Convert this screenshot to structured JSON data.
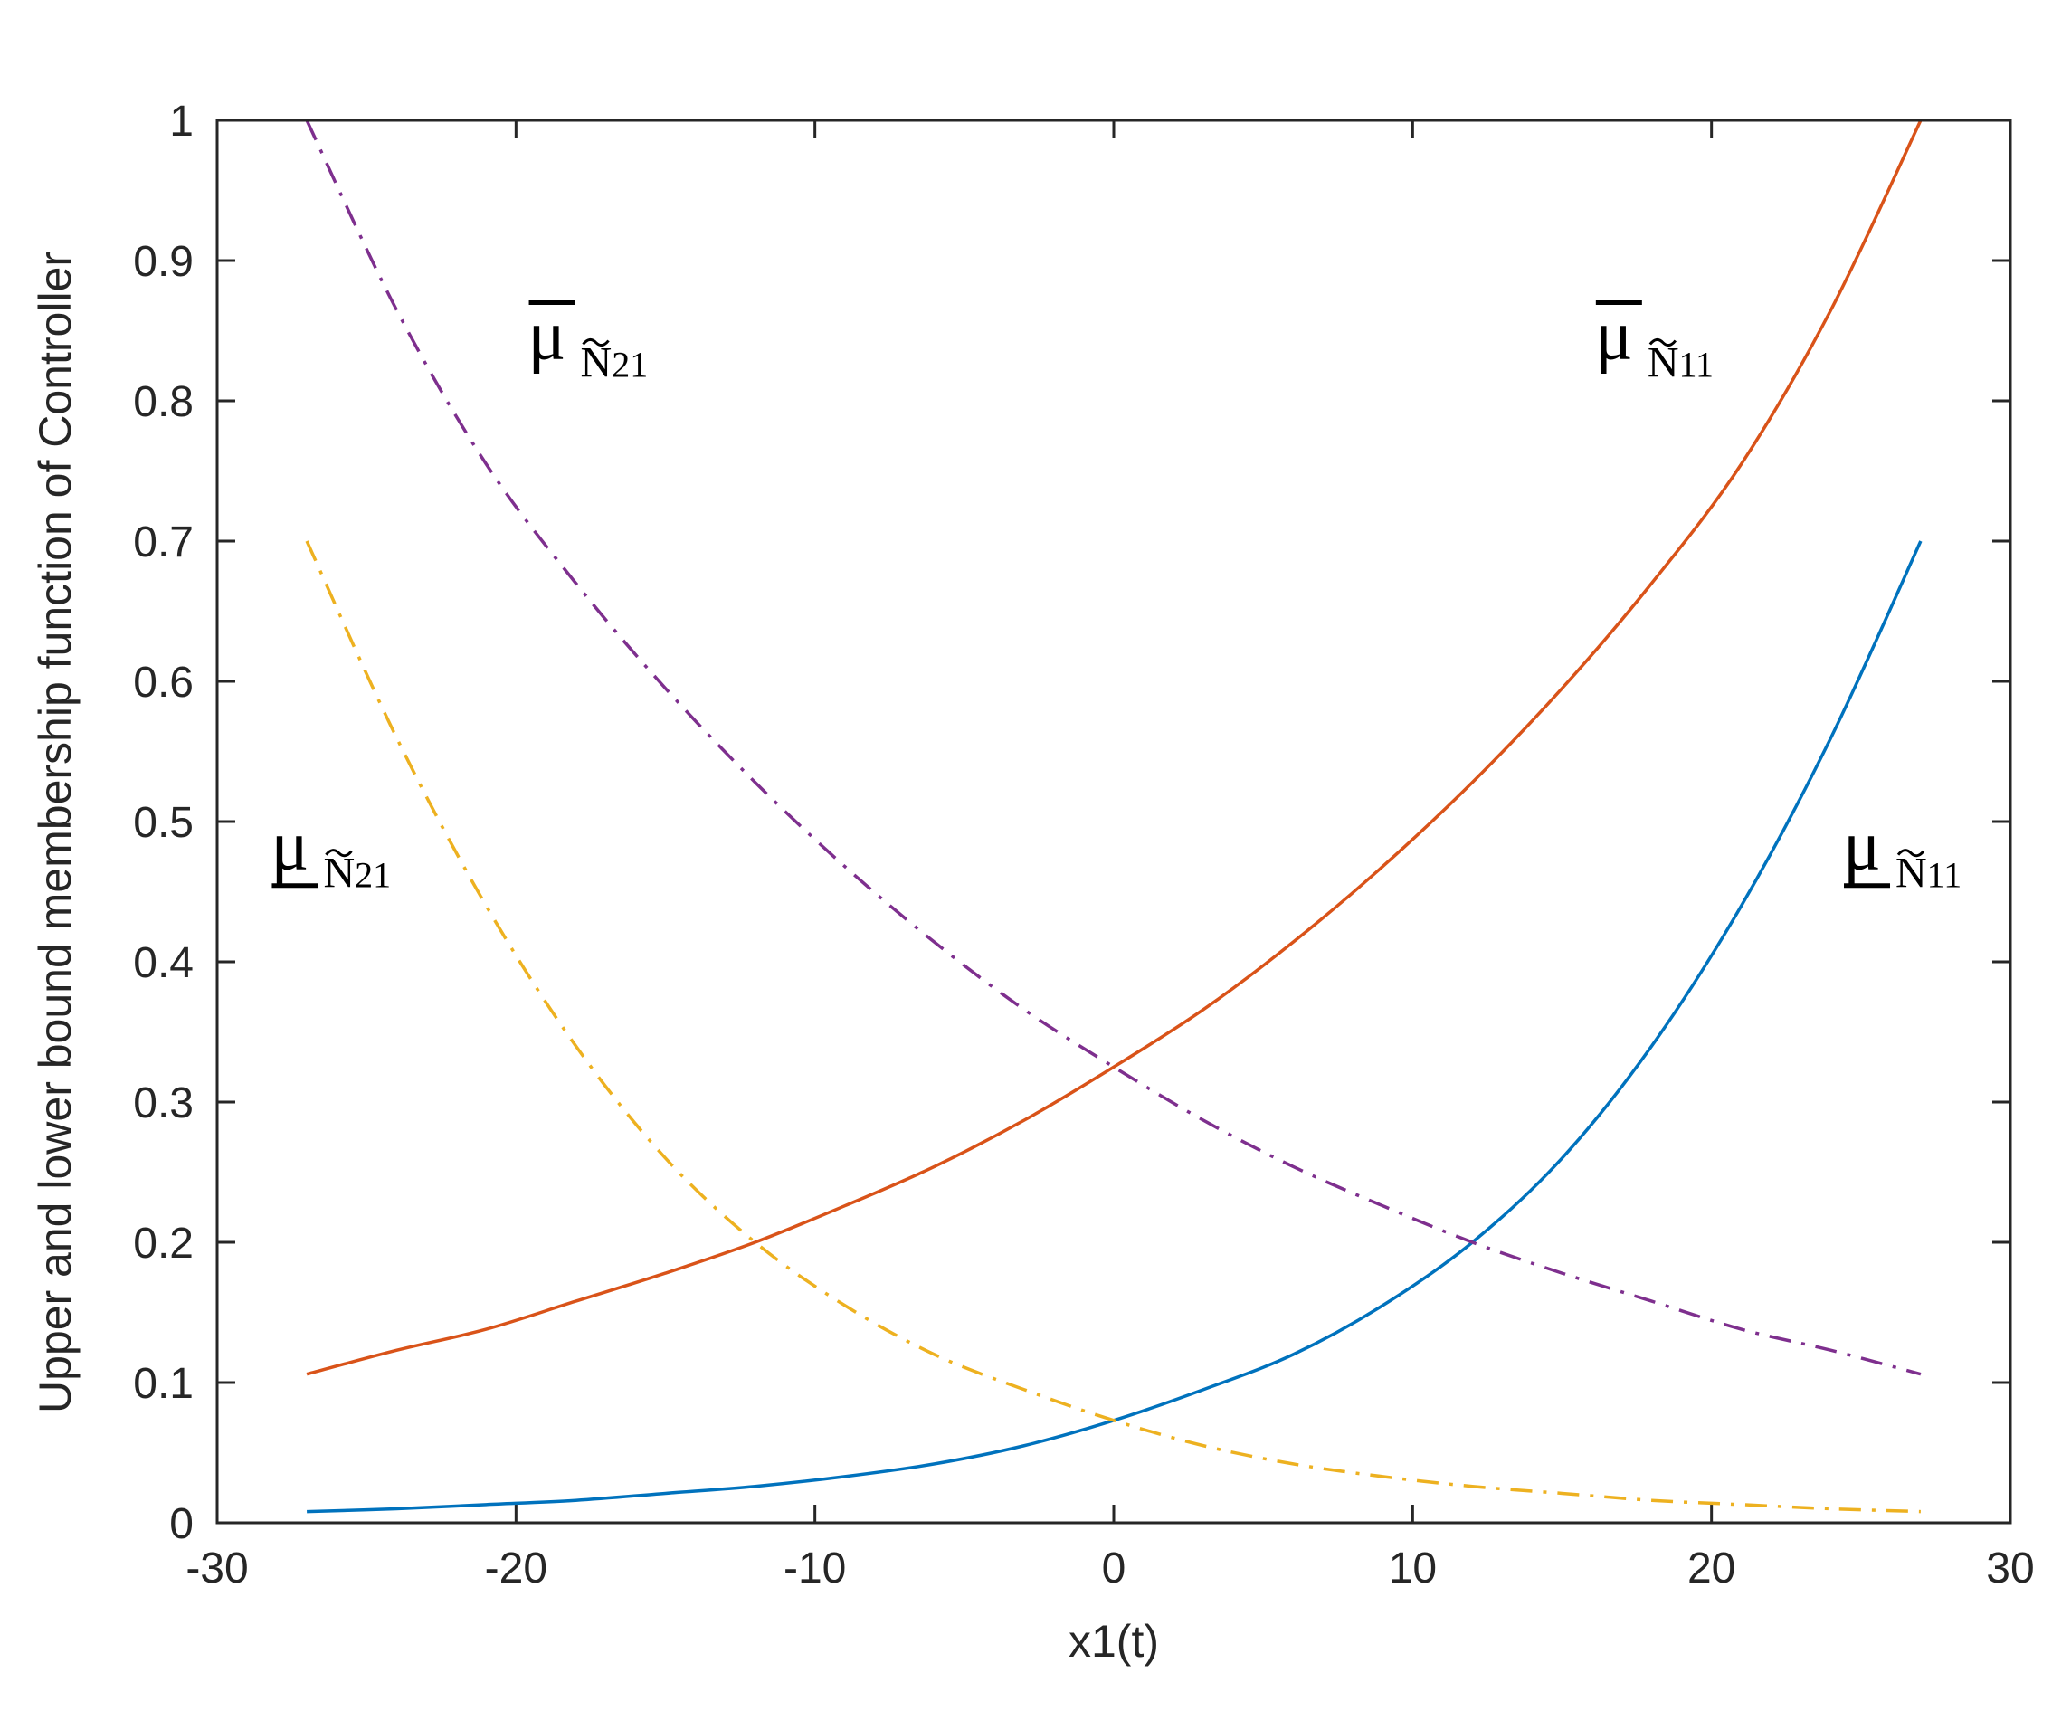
{
  "chart_data": {
    "type": "line",
    "title": "",
    "xlabel": "x1(t)",
    "ylabel": "Upper and lower bound membership function of Controller",
    "xlim": [
      -30,
      30
    ],
    "ylim": [
      0,
      1
    ],
    "xticks": [
      -30,
      -20,
      -10,
      0,
      10,
      20,
      30
    ],
    "yticks": [
      0,
      0.1,
      0.2,
      0.3,
      0.4,
      0.5,
      0.6,
      0.7,
      0.8,
      0.9,
      1
    ],
    "grid": false,
    "x": [
      -27,
      -24,
      -21,
      -18,
      -15,
      -12,
      -9,
      -6,
      -3,
      0,
      3,
      6,
      9,
      12,
      15,
      18,
      21,
      24,
      27
    ],
    "series": [
      {
        "key": "upper_N11",
        "color": "#D95319",
        "style": "solid",
        "values": [
          0.106,
          0.123,
          0.138,
          0.158,
          0.178,
          0.2,
          0.226,
          0.254,
          0.287,
          0.325,
          0.366,
          0.414,
          0.468,
          0.528,
          0.595,
          0.67,
          0.755,
          0.865,
          1.0
        ]
      },
      {
        "key": "lower_N11",
        "color": "#0072BD",
        "style": "solid",
        "values": [
          0.008,
          0.01,
          0.013,
          0.016,
          0.021,
          0.026,
          0.033,
          0.042,
          0.055,
          0.073,
          0.095,
          0.12,
          0.155,
          0.2,
          0.26,
          0.34,
          0.44,
          0.56,
          0.7
        ]
      },
      {
        "key": "upper_N21",
        "color": "#7E2F8E",
        "style": "dashdot",
        "values": [
          1.0,
          0.865,
          0.755,
          0.67,
          0.595,
          0.528,
          0.468,
          0.414,
          0.366,
          0.325,
          0.287,
          0.254,
          0.226,
          0.2,
          0.178,
          0.158,
          0.138,
          0.123,
          0.106
        ]
      },
      {
        "key": "lower_N21",
        "color": "#EDB120",
        "style": "dashdot",
        "values": [
          0.7,
          0.56,
          0.44,
          0.34,
          0.26,
          0.2,
          0.155,
          0.12,
          0.095,
          0.073,
          0.055,
          0.042,
          0.033,
          0.026,
          0.021,
          0.016,
          0.013,
          0.01,
          0.008
        ]
      }
    ],
    "annotations": [
      {
        "key": "upper_N21",
        "symbol": "μ",
        "bar": "over",
        "sub": "Ñ21",
        "sub_base": "N",
        "sub_digits": "21",
        "x": -19.6,
        "y": 0.83
      },
      {
        "key": "upper_N11",
        "symbol": "μ",
        "bar": "over",
        "sub": "Ñ11",
        "sub_base": "N",
        "sub_digits": "11",
        "x": 16.1,
        "y": 0.83
      },
      {
        "key": "lower_N21",
        "symbol": "μ",
        "bar": "under",
        "sub": "Ñ21",
        "sub_base": "N",
        "sub_digits": "21",
        "x": -28.2,
        "y": 0.466
      },
      {
        "key": "lower_N11",
        "symbol": "μ",
        "bar": "under",
        "sub": "Ñ11",
        "sub_base": "N",
        "sub_digits": "11",
        "x": 24.4,
        "y": 0.466
      }
    ]
  }
}
